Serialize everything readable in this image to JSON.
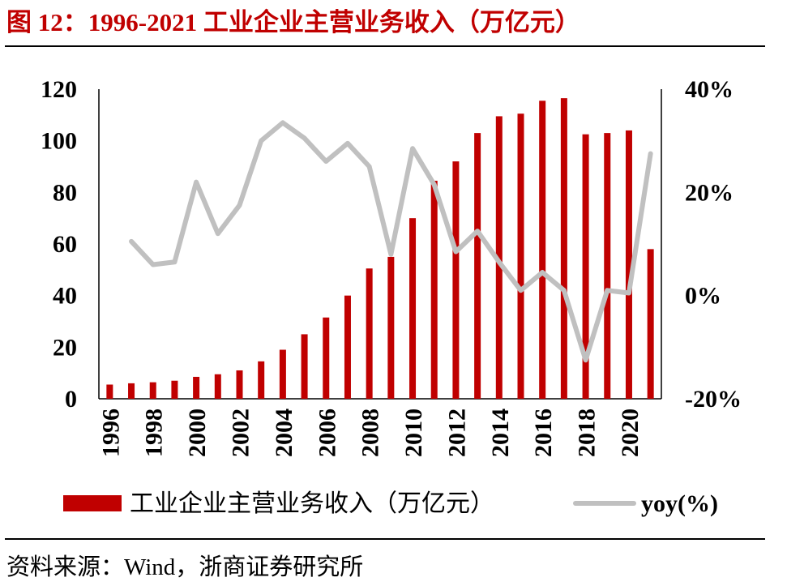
{
  "header": {
    "title": "图 12：1996-2021 工业企业主营业务收入（万亿元）"
  },
  "footer": {
    "source": "资料来源：Wind，浙商证券研究所"
  },
  "colors": {
    "title": "#c00000",
    "bar": "#c00000",
    "line": "#c0c0c0",
    "axis": "#000000"
  },
  "chart_data": {
    "type": "bar",
    "title": "1996-2021 工业企业主营业务收入（万亿元）",
    "categories": [
      "1996",
      "1997",
      "1998",
      "1999",
      "2000",
      "2001",
      "2002",
      "2003",
      "2004",
      "2005",
      "2006",
      "2007",
      "2008",
      "2009",
      "2010",
      "2011",
      "2012",
      "2013",
      "2014",
      "2015",
      "2016",
      "2017",
      "2018",
      "2019",
      "2020",
      "2021"
    ],
    "x_tick_labels": [
      "1996",
      "1998",
      "2000",
      "2002",
      "2004",
      "2006",
      "2008",
      "2010",
      "2012",
      "2014",
      "2016",
      "2018",
      "2020"
    ],
    "series": [
      {
        "name": "工业企业主营业务收入（万亿元）",
        "type": "bar",
        "axis": "left",
        "values": [
          5.5,
          6.0,
          6.4,
          7.0,
          8.5,
          9.5,
          11.0,
          14.5,
          19.0,
          25.0,
          31.5,
          40.0,
          50.5,
          55.0,
          70.0,
          84.5,
          92.0,
          103.0,
          109.5,
          110.5,
          115.5,
          116.5,
          102.5,
          103.0,
          104.0,
          58.0
        ]
      },
      {
        "name": "yoy(%)",
        "type": "line",
        "axis": "right",
        "values": [
          null,
          10.5,
          6.0,
          6.5,
          22.0,
          12.0,
          17.5,
          30.0,
          33.5,
          30.5,
          26.0,
          29.5,
          25.0,
          8.0,
          28.5,
          21.5,
          8.5,
          12.5,
          6.5,
          1.0,
          4.5,
          1.0,
          -12.5,
          1.0,
          0.5,
          27.5
        ]
      }
    ],
    "y_left": {
      "ylim": [
        0,
        120
      ],
      "ticks": [
        0,
        20,
        40,
        60,
        80,
        100,
        120
      ]
    },
    "y_right": {
      "ylim": [
        -20,
        40
      ],
      "ticks": [
        -20,
        0,
        20,
        40
      ],
      "tick_labels": [
        "-20%",
        "0%",
        "20%",
        "40%"
      ]
    },
    "legend": {
      "position": "bottom",
      "items": [
        "工业企业主营业务收入（万亿元）",
        "yoy(%)"
      ]
    }
  }
}
